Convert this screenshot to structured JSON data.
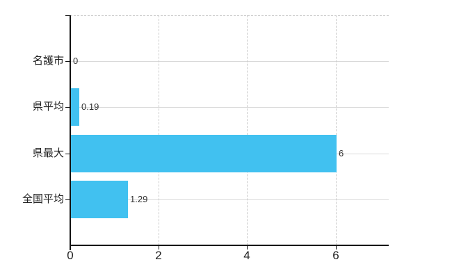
{
  "chart_data": {
    "type": "bar",
    "orientation": "horizontal",
    "title": "",
    "categories": [
      "名護市",
      "県平均",
      "県最大",
      "全国平均"
    ],
    "values": [
      0,
      0.19,
      6,
      1.29
    ],
    "value_labels": [
      "0",
      "0.19",
      "6",
      "1.29"
    ],
    "x_ticks": [
      0,
      2,
      4,
      6
    ],
    "x_tick_labels": [
      "0",
      "2",
      "4",
      "6"
    ],
    "xlim": [
      0,
      7.2
    ],
    "grid": true,
    "legend_position": "none",
    "bar_color": "#41C1F0",
    "axis_color": "#111111",
    "solid_grid_color": "#d9d9d9",
    "dashed_grid_color": "#cccccc",
    "text_color": "#222222",
    "value_text_color": "#333333",
    "background_color": "#ffffff"
  }
}
